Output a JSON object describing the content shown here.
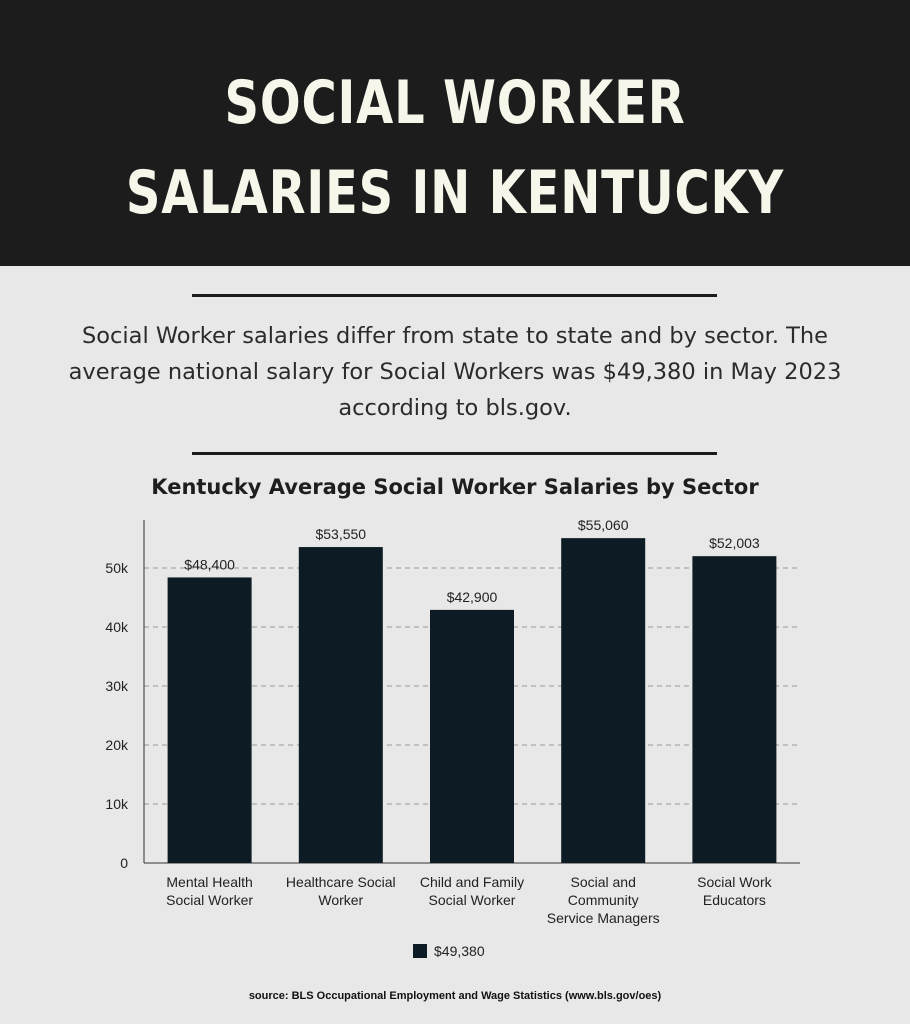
{
  "header": {
    "title": "SOCIAL WORKER SALARIES IN KENTUCKY"
  },
  "intro": {
    "text": "Social Worker salaries differ from state to state and by sector. The average national salary for Social Workers was $49,380 in May 2023 according to bls.gov."
  },
  "footer": {
    "source": "source: BLS Occupational Employment and Wage Statistics (www.bls.gov/oes)"
  },
  "colors": {
    "header_bg": "#1c1c1c",
    "title_text": "#f6f6ea",
    "bar": "#0d1b24",
    "page_bg": "#e8e8e8"
  },
  "chart_data": {
    "type": "bar",
    "title": "Kentucky Average Social Worker Salaries by Sector",
    "categories": [
      [
        "Mental Health",
        "Social Worker"
      ],
      [
        "Healthcare Social",
        "Worker"
      ],
      [
        "Child and Family",
        "Social Worker"
      ],
      [
        "Social and",
        "Community",
        "Service Managers"
      ],
      [
        "Social Work",
        "Educators"
      ]
    ],
    "series": [
      {
        "name": "$49,380",
        "values": [
          48400,
          53550,
          42900,
          55060,
          52003
        ],
        "data_labels": [
          "$48,400",
          "$53,550",
          "$42,900",
          "$55,060",
          "$52,003"
        ]
      }
    ],
    "yticks": [
      0,
      10000,
      20000,
      30000,
      40000,
      50000
    ],
    "ytick_labels": [
      "0",
      "10k",
      "20k",
      "30k",
      "40k",
      "50k"
    ],
    "ylim": [
      0,
      58000
    ],
    "grid": true,
    "legend": "bottom"
  }
}
